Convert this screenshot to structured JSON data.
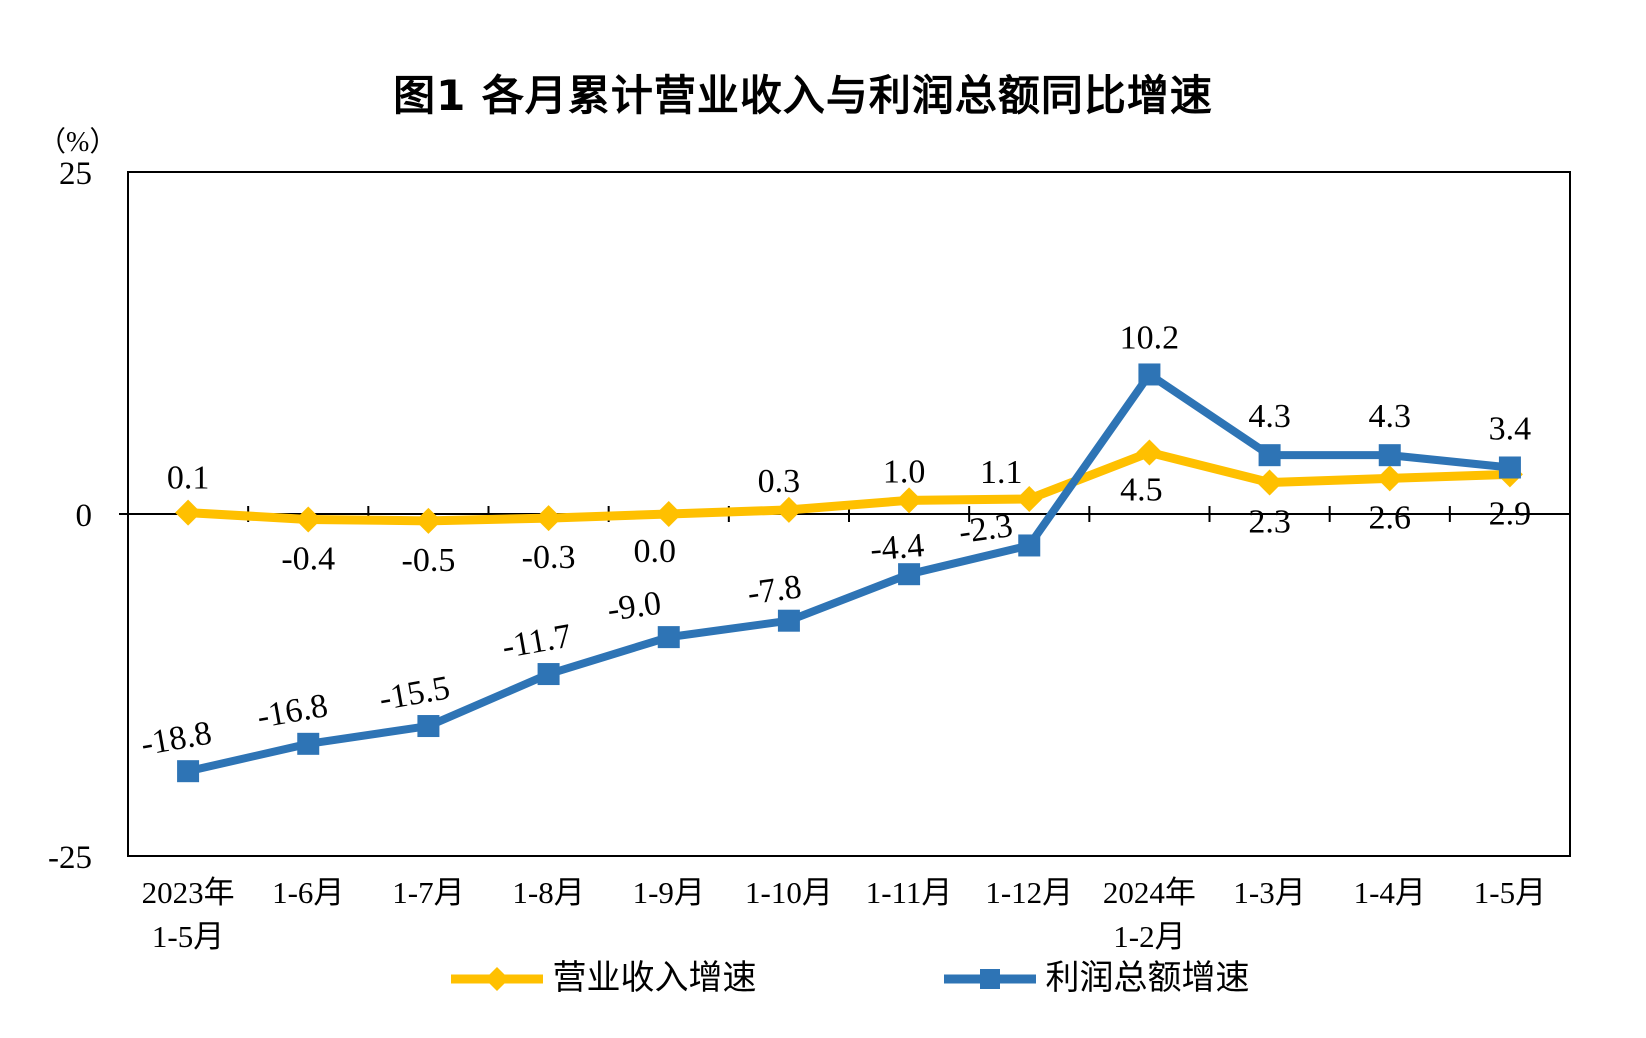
{
  "title": "图1  各月累计营业收入与利润总额同比增速",
  "y_axis_unit": "（%）",
  "chart_data": {
    "type": "line",
    "title": "图1  各月累计营业收入与利润总额同比增速",
    "ylabel": "（%）",
    "ylim": [
      -25,
      25
    ],
    "yticks": [
      {
        "value": 25,
        "label": "25"
      },
      {
        "value": 0,
        "label": "0"
      },
      {
        "value": -25,
        "label": "-25"
      }
    ],
    "grid": false,
    "legend_position": "bottom",
    "axis_color": "#000000",
    "categories": [
      [
        "2023年",
        "1-5月"
      ],
      [
        "1-6月"
      ],
      [
        "1-7月"
      ],
      [
        "1-8月"
      ],
      [
        "1-9月"
      ],
      [
        "1-10月"
      ],
      [
        "1-11月"
      ],
      [
        "1-12月"
      ],
      [
        "2024年",
        "1-2月"
      ],
      [
        "1-3月"
      ],
      [
        "1-4月"
      ],
      [
        "1-5月"
      ]
    ],
    "series": [
      {
        "name": "营业收入增速",
        "color": "#FFC000",
        "marker": "diamond",
        "values": [
          0.1,
          -0.4,
          -0.5,
          -0.3,
          0.0,
          0.3,
          1.0,
          1.1,
          4.5,
          2.3,
          2.6,
          2.9
        ],
        "label_pos": [
          "above",
          "below",
          "below",
          "below",
          "below",
          "above",
          "above",
          "above",
          "below",
          "below",
          "below",
          "below"
        ],
        "label_dx": [
          0,
          0,
          0,
          0,
          -14,
          -10,
          -5,
          -28,
          -8,
          0,
          0,
          0
        ],
        "label_dy": [
          -24,
          50,
          50,
          50,
          48,
          -18,
          -18,
          -16,
          48,
          50,
          50,
          50
        ],
        "label_rot": [
          0,
          0,
          0,
          0,
          0,
          0,
          0,
          0,
          0,
          0,
          0,
          0
        ]
      },
      {
        "name": "利润总额增速",
        "color": "#2E74B5",
        "marker": "square",
        "values": [
          -18.8,
          -16.8,
          -15.5,
          -11.7,
          -9.0,
          -7.8,
          -4.4,
          -2.3,
          10.2,
          4.3,
          4.3,
          3.4
        ],
        "label_pos": [
          "above",
          "above",
          "above",
          "above",
          "above",
          "above",
          "above",
          "above",
          "above",
          "above",
          "above",
          "above"
        ],
        "label_dx": [
          -10,
          -14,
          -12,
          -10,
          -33,
          -13,
          -11,
          -42,
          0,
          0,
          0,
          0
        ],
        "label_dy": [
          -22,
          -22,
          -22,
          -22,
          -20,
          -20,
          -16,
          -6,
          -26,
          -28,
          -28,
          -28
        ],
        "label_rot": [
          -10,
          -10,
          -10,
          -10,
          -8,
          -8,
          -5,
          -8,
          0,
          0,
          0,
          0
        ]
      }
    ]
  }
}
